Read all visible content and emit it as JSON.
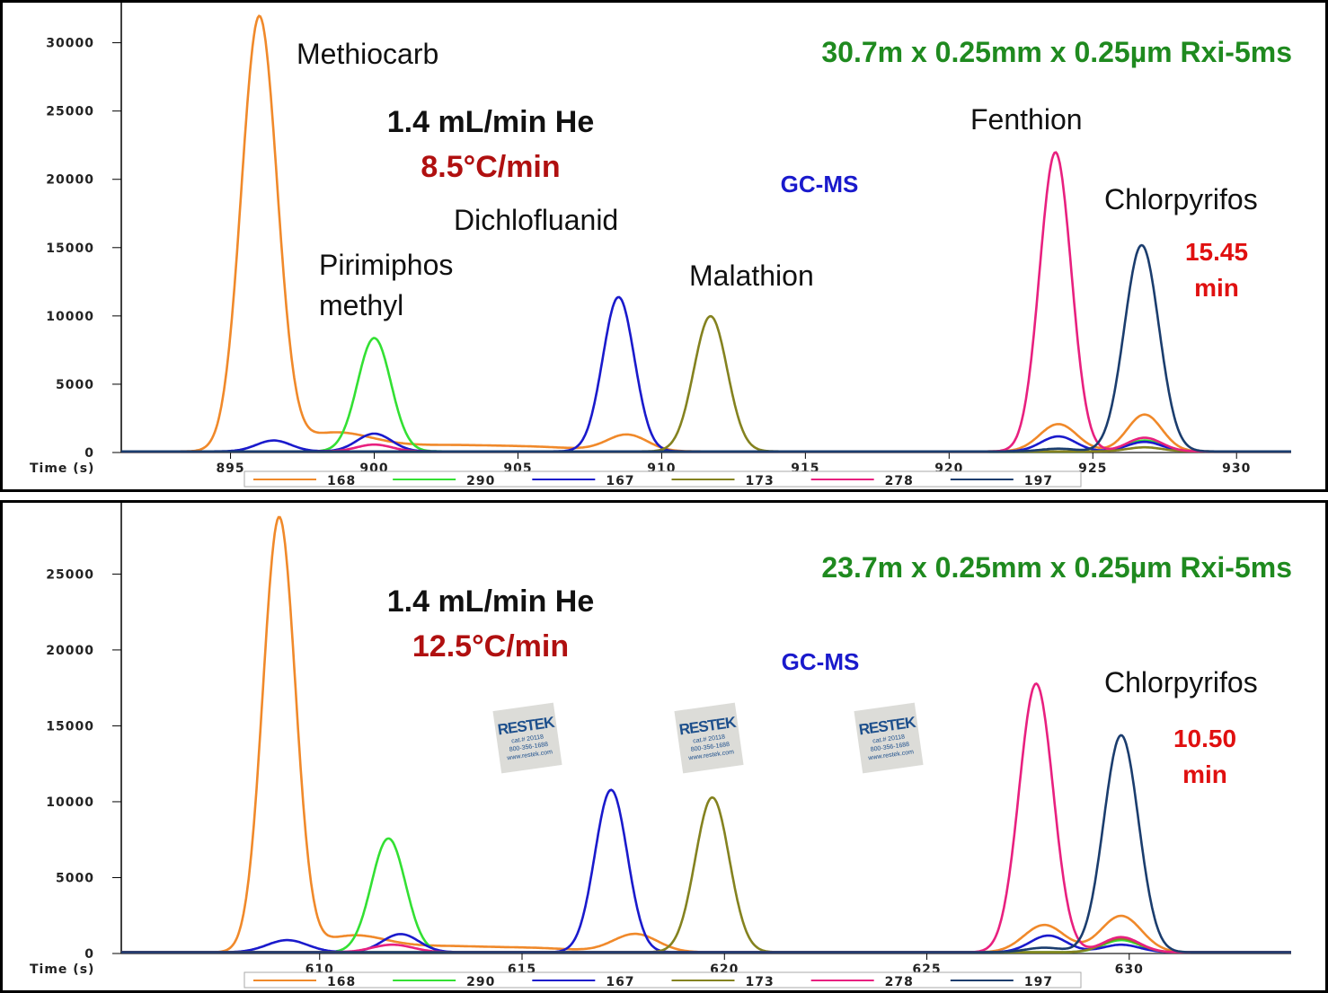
{
  "chart_data": [
    {
      "type": "line",
      "title": "30.7m x 0.25mm x 0.25µm Rxi-5ms",
      "xlabel": "Time (s)",
      "ylabel": "",
      "xlim": [
        891.2,
        931.9
      ],
      "ylim": [
        0,
        32800
      ],
      "x_ticks": [
        895,
        900,
        905,
        910,
        915,
        920,
        925,
        930
      ],
      "y_ticks": [
        0,
        5000,
        10000,
        15000,
        20000,
        25000,
        30000
      ],
      "legend": [
        "168",
        "290",
        "167",
        "173",
        "278",
        "197"
      ],
      "legend_position": "bottom",
      "annotations": {
        "flow": "1.4 mL/min He",
        "ramp": "8.5°C/min",
        "technique": "GC-MS",
        "rt_value": "15.45",
        "rt_unit": "min",
        "compounds": [
          "Methiocarb",
          "Pirimiphos",
          "methyl",
          "Dichlofluanid",
          "Malathion",
          "Fenthion",
          "Chlorpyrifos"
        ]
      },
      "series": [
        {
          "name": "168",
          "color": "#f0892a",
          "peaks": [
            [
              896.0,
              31700,
              0.62
            ],
            [
              898.6,
              1300,
              1.3
            ],
            [
              902.5,
              450,
              2.2
            ],
            [
              906,
              200,
              1.5
            ],
            [
              908.8,
              1200,
              0.7
            ],
            [
              923.8,
              2000,
              0.65
            ],
            [
              926.8,
              2700,
              0.6
            ]
          ]
        },
        {
          "name": "290",
          "color": "#33e033",
          "peaks": [
            [
              900.0,
              8300,
              0.58
            ],
            [
              926.8,
              800,
              0.6
            ]
          ]
        },
        {
          "name": "167",
          "color": "#1a1acc",
          "peaks": [
            [
              896.5,
              800,
              0.6
            ],
            [
              900.0,
              1300,
              0.6
            ],
            [
              908.5,
              11300,
              0.55
            ],
            [
              923.8,
              1100,
              0.6
            ],
            [
              926.8,
              700,
              0.6
            ]
          ]
        },
        {
          "name": "173",
          "color": "#84821f",
          "peaks": [
            [
              911.7,
              9900,
              0.58
            ],
            [
              926.8,
              300,
              0.6
            ]
          ]
        },
        {
          "name": "278",
          "color": "#e8207f",
          "peaks": [
            [
              900.0,
              500,
              0.6
            ],
            [
              923.7,
              21900,
              0.55
            ],
            [
              926.8,
              1000,
              0.6
            ]
          ]
        },
        {
          "name": "197",
          "color": "#1b3d6e",
          "peaks": [
            [
              926.7,
              15100,
              0.6
            ],
            [
              923.8,
              200,
              0.6
            ]
          ]
        }
      ]
    },
    {
      "type": "line",
      "title": "23.7m x 0.25mm x 0.25µm Rxi-5ms",
      "xlabel": "Time (s)",
      "ylabel": "",
      "xlim": [
        605.1,
        634.0
      ],
      "ylim": [
        0,
        29400
      ],
      "x_ticks": [
        610,
        615,
        620,
        625,
        630
      ],
      "y_ticks": [
        0,
        5000,
        10000,
        15000,
        20000,
        25000
      ],
      "legend": [
        "168",
        "290",
        "167",
        "173",
        "278",
        "197"
      ],
      "legend_position": "bottom",
      "annotations": {
        "flow": "1.4 mL/min He",
        "ramp": "12.5°C/min",
        "technique": "GC-MS",
        "rt_value": "10.50",
        "rt_unit": "min",
        "compounds": [
          "Chlorpyrifos"
        ]
      },
      "series": [
        {
          "name": "168",
          "color": "#f0892a",
          "peaks": [
            [
              609.0,
              28600,
              0.4
            ],
            [
              610.8,
              1000,
              0.8
            ],
            [
              613,
              400,
              1.4
            ],
            [
              615.5,
              200,
              1
            ],
            [
              617.8,
              1200,
              0.55
            ],
            [
              627.9,
              1800,
              0.5
            ],
            [
              629.8,
              2400,
              0.5
            ]
          ]
        },
        {
          "name": "290",
          "color": "#33e033",
          "peaks": [
            [
              611.7,
              7500,
              0.42
            ],
            [
              629.8,
              800,
              0.45
            ]
          ]
        },
        {
          "name": "167",
          "color": "#1a1acc",
          "peaks": [
            [
              609.2,
              800,
              0.5
            ],
            [
              612.0,
              1200,
              0.45
            ],
            [
              617.2,
              10700,
              0.4
            ],
            [
              628.0,
              1100,
              0.45
            ],
            [
              629.8,
              500,
              0.45
            ]
          ]
        },
        {
          "name": "173",
          "color": "#84821f",
          "peaks": [
            [
              619.7,
              10200,
              0.42
            ],
            [
              629.8,
              900,
              0.45
            ]
          ]
        },
        {
          "name": "278",
          "color": "#e8207f",
          "peaks": [
            [
              611.8,
              500,
              0.5
            ],
            [
              627.7,
              17700,
              0.42
            ],
            [
              629.8,
              1000,
              0.45
            ]
          ]
        },
        {
          "name": "197",
          "color": "#1b3d6e",
          "peaks": [
            [
              629.8,
              14300,
              0.43
            ],
            [
              627.9,
              300,
              0.45
            ]
          ]
        }
      ]
    }
  ],
  "watermark": {
    "brand": "RESTEK",
    "cat": "cat.# 20118",
    "phone": "800-356-1688",
    "web": "www.restek.com"
  }
}
